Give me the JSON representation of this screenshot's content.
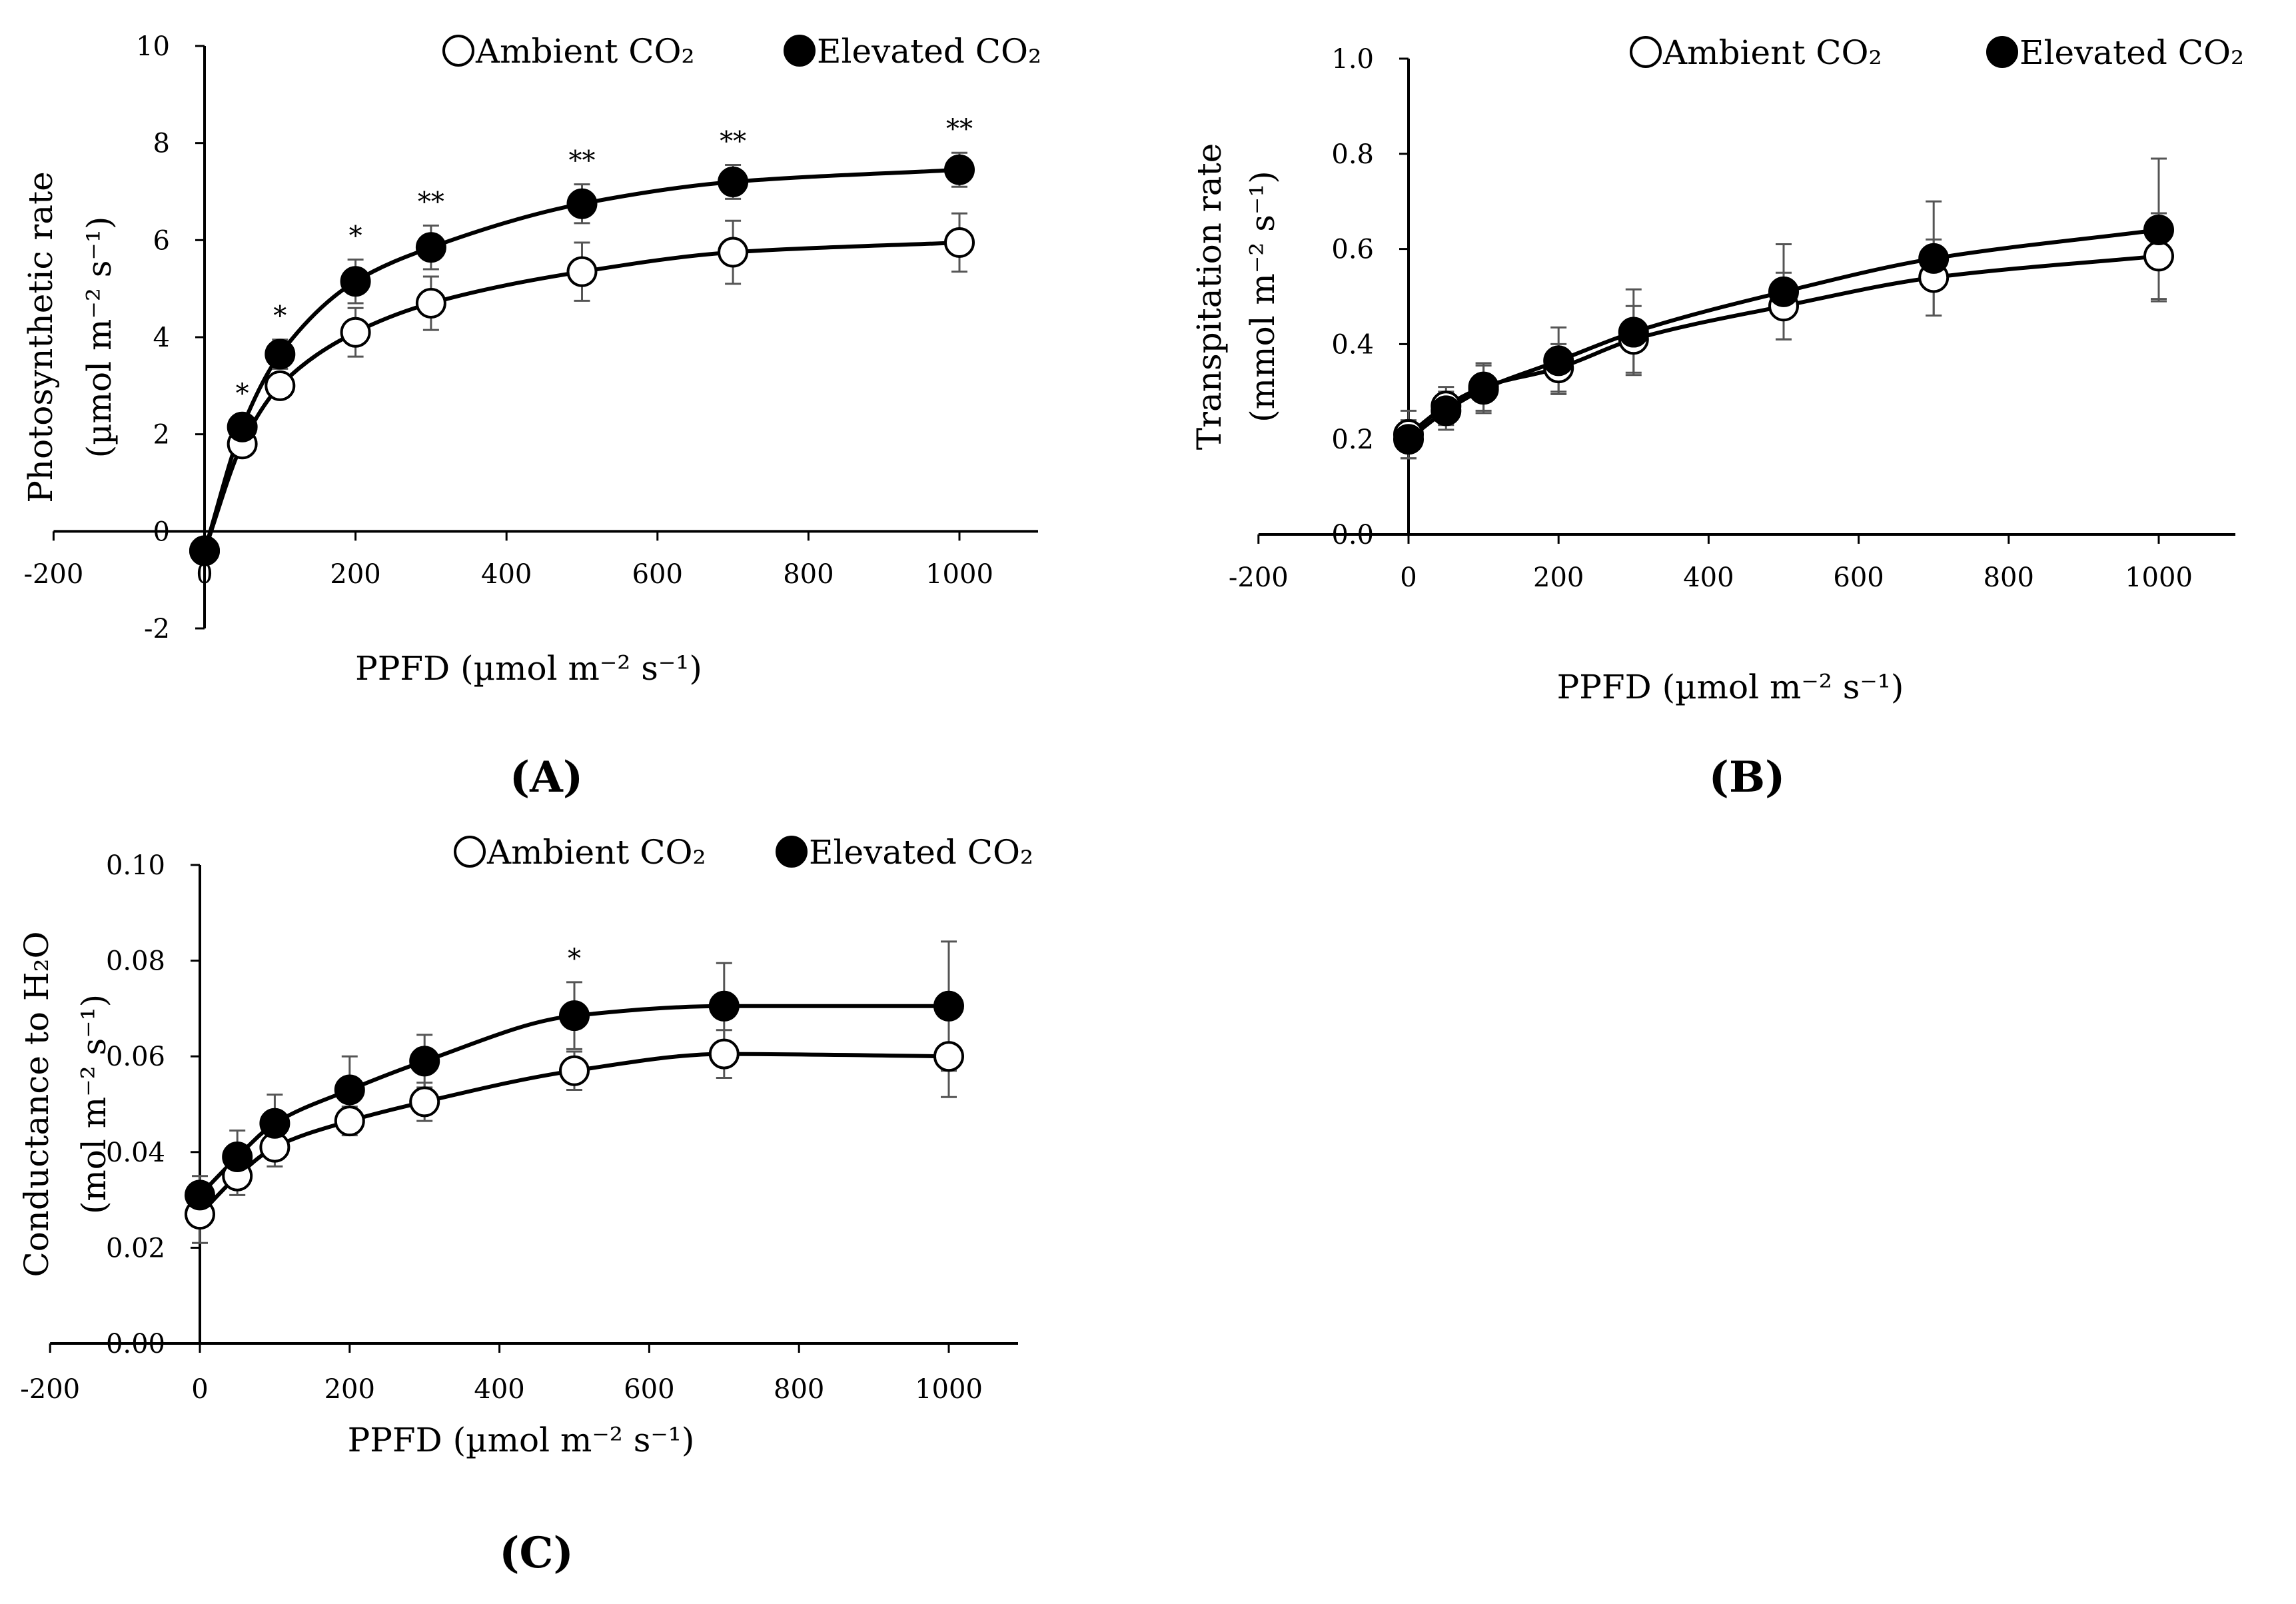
{
  "chart_data": [
    {
      "panel_label": "(A)",
      "type": "line",
      "xlabel": "PPFD (µmol m⁻² s⁻¹)",
      "ylabel_line1": "Photosynthetic rate",
      "ylabel_line2": "(µmol m⁻² s⁻¹)",
      "xlim": [
        -200,
        1000
      ],
      "ylim": [
        -2,
        10
      ],
      "x_ticks": [
        -200,
        0,
        200,
        400,
        600,
        800,
        1000
      ],
      "y_ticks": [
        -2,
        0,
        2,
        4,
        6,
        8,
        10
      ],
      "x_tick_labels": [
        "-200",
        "0",
        "200",
        "400",
        "600",
        "800",
        "1000"
      ],
      "y_tick_labels": [
        "-2",
        "0",
        "2",
        "4",
        "6",
        "8",
        "10"
      ],
      "legend_position": "top",
      "series": [
        {
          "name": "Ambient CO₂",
          "marker": "open-circle",
          "x": [
            0,
            50,
            100,
            200,
            300,
            500,
            700,
            1000
          ],
          "y": [
            -0.4,
            1.8,
            3.0,
            4.1,
            4.7,
            5.35,
            5.75,
            5.95
          ],
          "error": [
            0,
            0.15,
            0.15,
            0.5,
            0.55,
            0.6,
            0.65,
            0.6
          ]
        },
        {
          "name": "Elevated CO₂",
          "marker": "filled-circle",
          "x": [
            0,
            50,
            100,
            200,
            300,
            500,
            700,
            1000
          ],
          "y": [
            -0.4,
            2.15,
            3.65,
            5.15,
            5.85,
            6.75,
            7.2,
            7.45
          ],
          "error": [
            0,
            0.2,
            0.3,
            0.45,
            0.45,
            0.4,
            0.35,
            0.35
          ]
        }
      ],
      "significance": [
        {
          "x": 50,
          "text": "*"
        },
        {
          "x": 100,
          "text": "*"
        },
        {
          "x": 200,
          "text": "*"
        },
        {
          "x": 300,
          "text": "**"
        },
        {
          "x": 500,
          "text": "**"
        },
        {
          "x": 700,
          "text": "**"
        },
        {
          "x": 1000,
          "text": "**"
        }
      ]
    },
    {
      "panel_label": "(B)",
      "type": "line",
      "xlabel": "PPFD (µmol m⁻² s⁻¹)",
      "ylabel_line1": "Transpitation rate",
      "ylabel_line2": "(mmol m⁻² s⁻¹)",
      "xlim": [
        -200,
        1100
      ],
      "ylim": [
        0,
        1.0
      ],
      "x_ticks": [
        -200,
        0,
        200,
        400,
        600,
        800,
        1000
      ],
      "y_ticks": [
        0,
        0.2,
        0.4,
        0.6,
        0.8,
        1.0
      ],
      "x_tick_labels": [
        "-200",
        "0",
        "200",
        "400",
        "600",
        "800",
        "1000"
      ],
      "y_tick_labels": [
        "0.0",
        "0.2",
        "0.4",
        "0.6",
        "0.8",
        "1.0"
      ],
      "legend_position": "top",
      "series": [
        {
          "name": "Ambient CO₂",
          "marker": "open-circle",
          "x": [
            0,
            50,
            100,
            200,
            300,
            500,
            700,
            1000
          ],
          "y": [
            0.21,
            0.27,
            0.31,
            0.35,
            0.41,
            0.48,
            0.54,
            0.585
          ],
          "error": [
            0.05,
            0.04,
            0.05,
            0.05,
            0.07,
            0.07,
            0.08,
            0.09
          ]
        },
        {
          "name": "Elevated CO₂",
          "marker": "filled-circle",
          "x": [
            0,
            50,
            100,
            200,
            300,
            500,
            700,
            1000
          ],
          "y": [
            0.2,
            0.26,
            0.305,
            0.365,
            0.425,
            0.51,
            0.58,
            0.64
          ],
          "error": [
            0.04,
            0.04,
            0.05,
            0.07,
            0.09,
            0.1,
            0.12,
            0.15
          ]
        }
      ],
      "significance": []
    },
    {
      "panel_label": "(C)",
      "type": "line",
      "xlabel": "PPFD (µmol m⁻² s⁻¹)",
      "ylabel_line1": "Conductance to H₂O",
      "ylabel_line2": "(mol m⁻² s⁻¹)",
      "xlim": [
        -200,
        1100
      ],
      "ylim": [
        0,
        0.1
      ],
      "x_ticks": [
        -200,
        0,
        200,
        400,
        600,
        800,
        1000
      ],
      "y_ticks": [
        0,
        0.02,
        0.04,
        0.06,
        0.08,
        0.1
      ],
      "x_tick_labels": [
        "-200",
        "0",
        "200",
        "400",
        "600",
        "800",
        "1000"
      ],
      "y_tick_labels": [
        "0.00",
        "0.02",
        "0.04",
        "0.06",
        "0.08",
        "0.10"
      ],
      "legend_position": "top",
      "series": [
        {
          "name": "Ambient CO₂",
          "marker": "open-circle",
          "x": [
            0,
            50,
            100,
            200,
            300,
            500,
            700,
            1000
          ],
          "y": [
            0.027,
            0.035,
            0.041,
            0.0465,
            0.0505,
            0.057,
            0.0605,
            0.06
          ],
          "error": [
            0.006,
            0.004,
            0.004,
            0.003,
            0.004,
            0.004,
            0.005,
            0.0085
          ]
        },
        {
          "name": "Elevated CO₂",
          "marker": "filled-circle",
          "x": [
            0,
            50,
            100,
            200,
            300,
            500,
            700,
            1000
          ],
          "y": [
            0.031,
            0.039,
            0.046,
            0.053,
            0.059,
            0.0685,
            0.0705,
            0.0705
          ],
          "error": [
            0.004,
            0.0055,
            0.006,
            0.007,
            0.0055,
            0.007,
            0.009,
            0.0135
          ]
        }
      ],
      "significance": [
        {
          "x": 500,
          "text": "*"
        }
      ]
    }
  ]
}
